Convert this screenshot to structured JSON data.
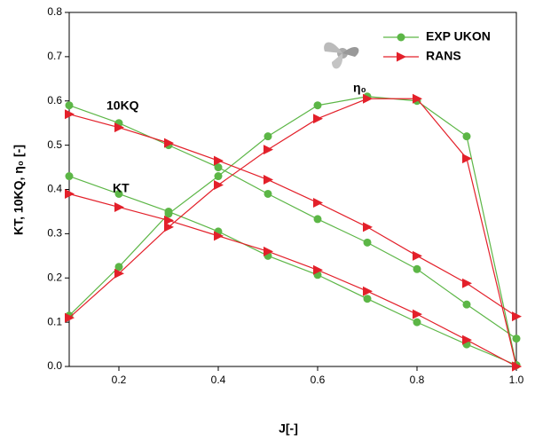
{
  "chart_data": {
    "type": "line",
    "xlabel": "J[-]",
    "ylabel": "KT, 10KQ, η₀ [-]",
    "x": [
      0.1,
      0.2,
      0.3,
      0.4,
      0.5,
      0.6,
      0.7,
      0.8,
      0.9,
      1.0
    ],
    "xlim": [
      0.1,
      1.0
    ],
    "xticks": [
      0.2,
      0.4,
      0.6,
      0.8,
      {
        "value": 1,
        "label": "1.0"
      }
    ],
    "ylim": [
      0,
      0.8
    ],
    "yticks": [
      {
        "value": 0,
        "label": "0.0"
      },
      0.1,
      0.2,
      0.3,
      0.4,
      0.5,
      0.6,
      0.7,
      0.8
    ],
    "annotations": [
      "10KQ",
      "KT",
      "η₀"
    ],
    "legend": "upper right",
    "series": [
      {
        "name": "EXP UKON",
        "color": "#5cb646",
        "marker": "circle",
        "kt": [
          0.43,
          0.39,
          0.35,
          0.305,
          0.25,
          0.207,
          0.153,
          0.1,
          0.05,
          0.003
        ],
        "kq": [
          0.59,
          0.55,
          0.5,
          0.45,
          0.39,
          0.333,
          0.28,
          0.22,
          0.14,
          0.063
        ],
        "eta": [
          0.115,
          0.225,
          0.345,
          0.43,
          0.52,
          0.59,
          0.61,
          0.6,
          0.52,
          0.003
        ]
      },
      {
        "name": "RANS",
        "color": "#e3202a",
        "marker": "triangle",
        "kt": [
          0.39,
          0.36,
          0.33,
          0.295,
          0.26,
          0.218,
          0.17,
          0.118,
          0.06,
          0.0
        ],
        "kq": [
          0.57,
          0.54,
          0.505,
          0.465,
          0.422,
          0.37,
          0.315,
          0.25,
          0.188,
          0.113
        ],
        "eta": [
          0.11,
          0.21,
          0.315,
          0.41,
          0.49,
          0.56,
          0.605,
          0.605,
          0.47,
          0.0
        ]
      }
    ]
  }
}
